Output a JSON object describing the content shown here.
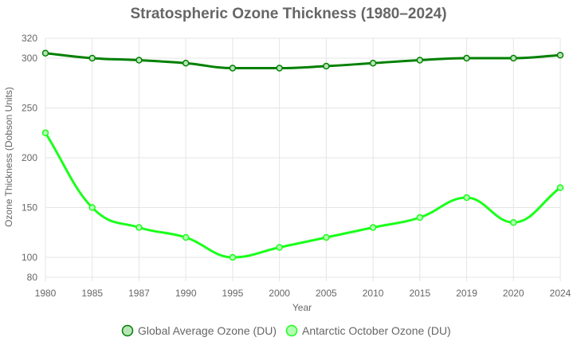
{
  "chart_data": {
    "type": "line",
    "title": "Stratospheric Ozone Thickness (1980–2024)",
    "xlabel": "Year",
    "ylabel": "Ozone Thickness (Dobson Units)",
    "categories": [
      "1980",
      "1985",
      "1987",
      "1990",
      "1995",
      "2000",
      "2005",
      "2010",
      "2015",
      "2019",
      "2020",
      "2024"
    ],
    "ylim": [
      80,
      320
    ],
    "yticks": [
      80,
      100,
      150,
      200,
      250,
      300,
      320
    ],
    "grid": true,
    "legend_position": "bottom",
    "series": [
      {
        "name": "Global Average Ozone (DU)",
        "color": "#008000",
        "fill": "#b7e4b7",
        "values": [
          305,
          300,
          298,
          295,
          290,
          290,
          292,
          295,
          298,
          300,
          300,
          303
        ]
      },
      {
        "name": "Antarctic October Ozone (DU)",
        "color": "#1aff1a",
        "fill": "#b3ffb3",
        "values": [
          225,
          150,
          130,
          120,
          100,
          110,
          120,
          130,
          140,
          160,
          135,
          170
        ]
      }
    ]
  }
}
